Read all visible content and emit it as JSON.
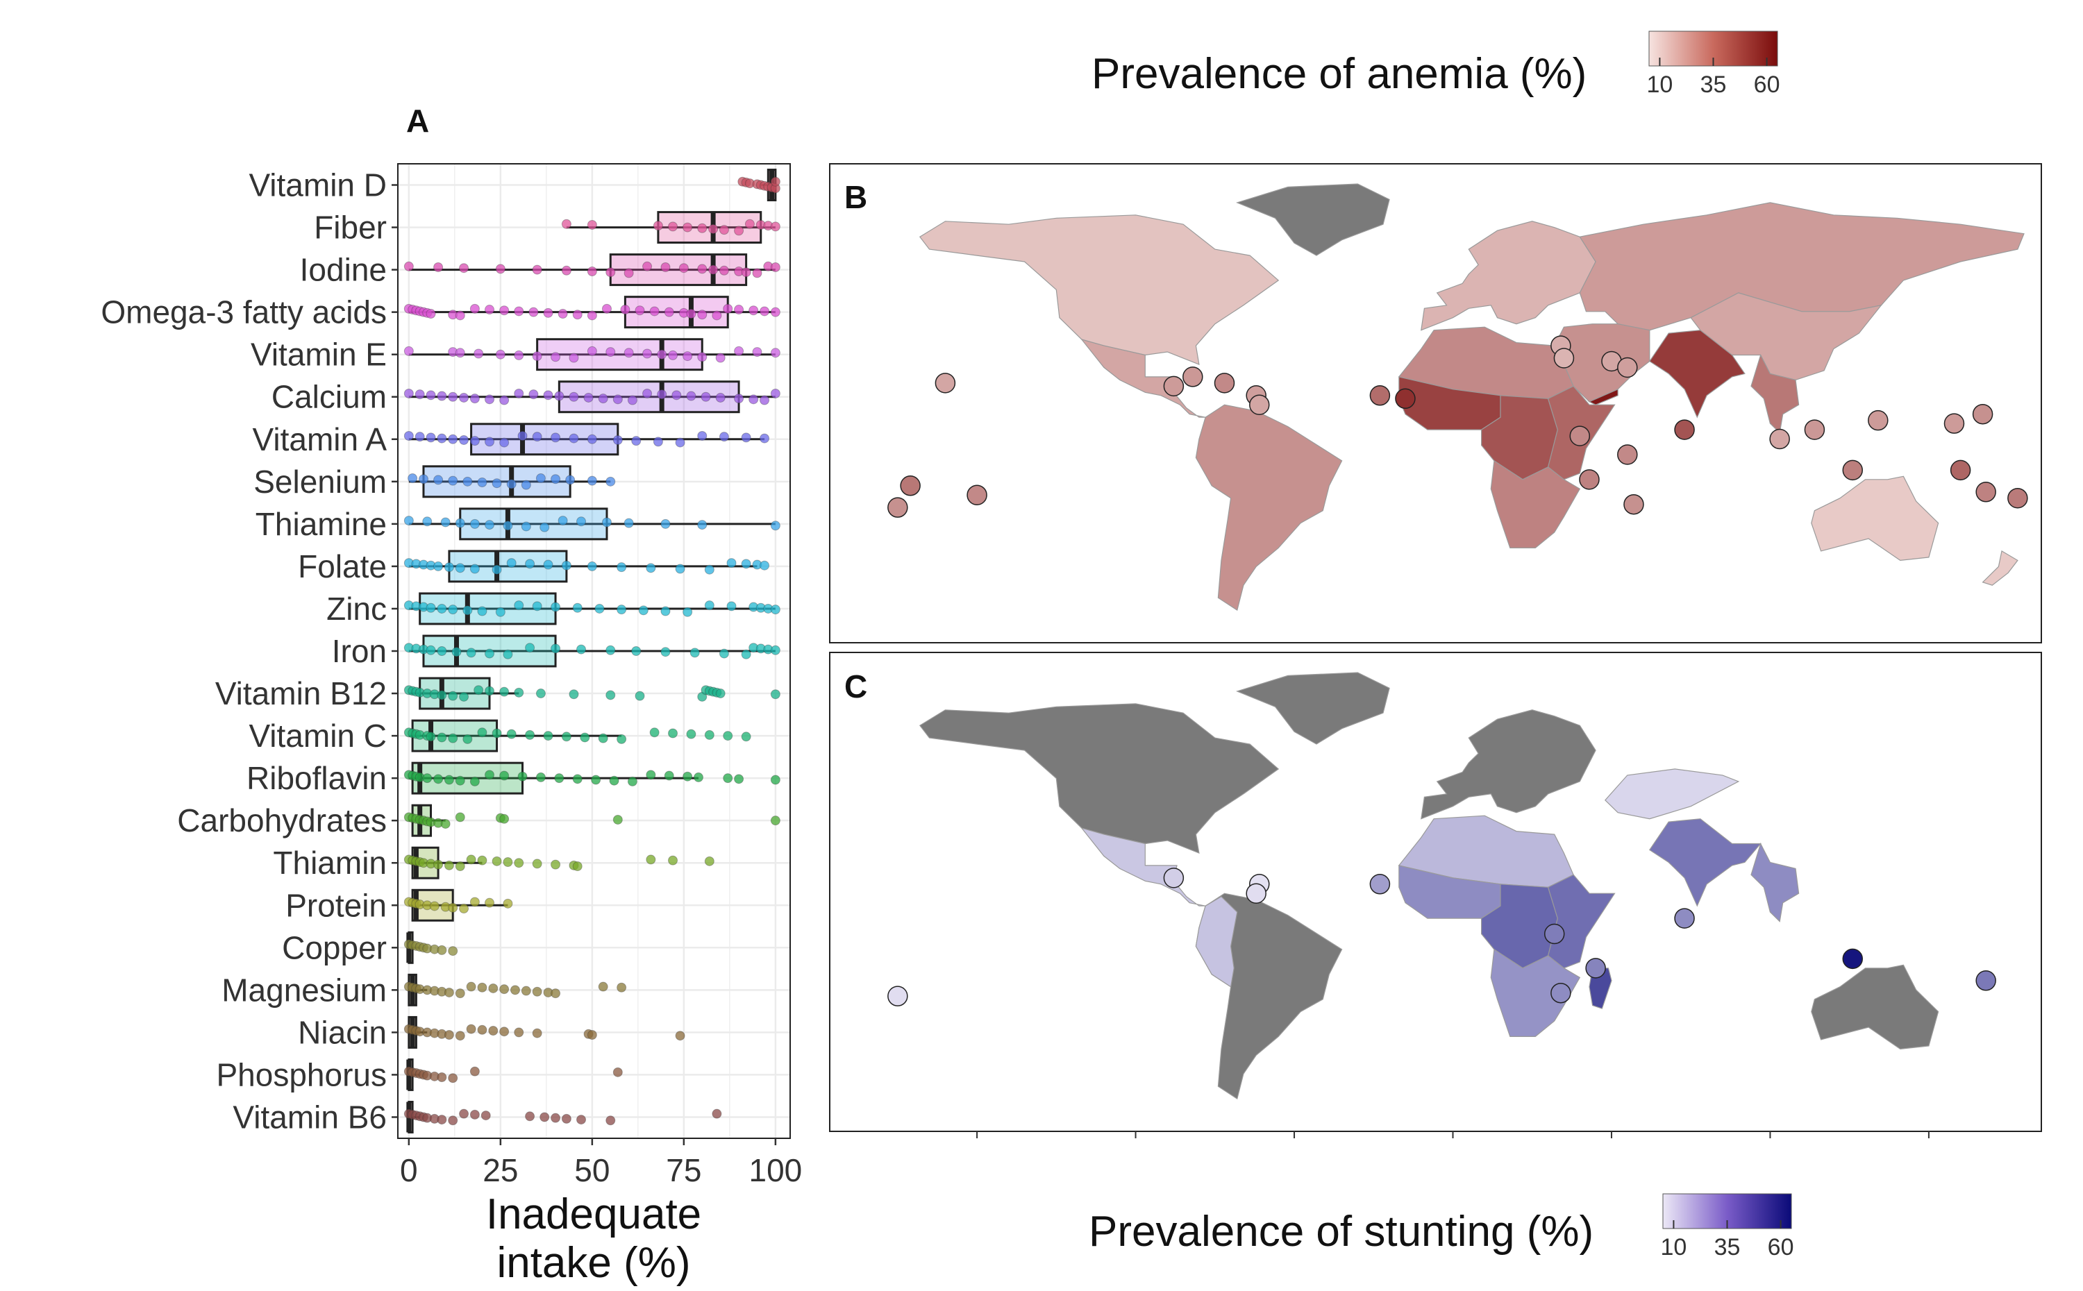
{
  "panels": {
    "a": "A",
    "b": "B",
    "c": "C"
  },
  "colors": {
    "panel_grid": "#ebebeb",
    "box_outline": "#222222",
    "ocean": "#ffffff",
    "no_data_land": "#7a7a7a",
    "anemia_low": "#f6e3e0",
    "anemia_high": "#7a0c0c",
    "stunting_low": "#ece8f6",
    "stunting_high": "#0a0a78"
  },
  "chart_data": [
    {
      "type": "box",
      "panel": "A",
      "xlabel_line1": "Inadequate",
      "xlabel_line2": "intake (%)",
      "xlim": [
        -3,
        104
      ],
      "xticks": [
        0,
        25,
        50,
        75,
        100
      ],
      "grid": true,
      "orientation": "horizontal",
      "series": [
        {
          "name": "Vitamin D",
          "color": "#c44e5e",
          "q1": 98,
          "median": 99,
          "q3": 100,
          "wlo": 96,
          "whi": 100,
          "points": [
            91,
            92,
            93,
            95,
            96,
            97,
            98,
            99,
            100,
            100
          ]
        },
        {
          "name": "Fiber",
          "color": "#e0559a",
          "q1": 68,
          "median": 83,
          "q3": 96,
          "wlo": 43,
          "whi": 100,
          "points": [
            43,
            50,
            68,
            72,
            76,
            80,
            83,
            86,
            90,
            93,
            96,
            98,
            100
          ]
        },
        {
          "name": "Iodine",
          "color": "#d94bb0",
          "q1": 55,
          "median": 83,
          "q3": 92,
          "wlo": 0,
          "whi": 100,
          "points": [
            0,
            8,
            15,
            25,
            35,
            43,
            50,
            55,
            60,
            65,
            70,
            75,
            80,
            83,
            86,
            90,
            92,
            95,
            98,
            100
          ]
        },
        {
          "name": "Omega-3 fatty acids",
          "color": "#d84fd0",
          "q1": 59,
          "median": 77,
          "q3": 87,
          "wlo": 0,
          "whi": 100,
          "points": [
            0,
            1,
            2,
            3,
            4,
            5,
            6,
            12,
            14,
            18,
            22,
            26,
            30,
            34,
            38,
            42,
            46,
            50,
            54,
            59,
            63,
            67,
            71,
            75,
            77,
            80,
            84,
            87,
            90,
            94,
            97,
            100
          ]
        },
        {
          "name": "Vitamin E",
          "color": "#c95ee0",
          "q1": 35,
          "median": 69,
          "q3": 80,
          "wlo": 0,
          "whi": 100,
          "points": [
            0,
            12,
            14,
            19,
            25,
            30,
            35,
            40,
            45,
            50,
            55,
            60,
            65,
            69,
            72,
            76,
            80,
            85,
            90,
            95,
            100
          ]
        },
        {
          "name": "Calcium",
          "color": "#9a5ae0",
          "q1": 41,
          "median": 69,
          "q3": 90,
          "wlo": 0,
          "whi": 100,
          "points": [
            0,
            3,
            6,
            9,
            12,
            15,
            18,
            22,
            26,
            30,
            34,
            38,
            41,
            45,
            49,
            53,
            57,
            61,
            65,
            69,
            73,
            77,
            81,
            85,
            90,
            94,
            97,
            100
          ]
        },
        {
          "name": "Vitamin A",
          "color": "#6a6ae8",
          "q1": 17,
          "median": 31,
          "q3": 57,
          "wlo": 0,
          "whi": 97,
          "points": [
            0,
            3,
            6,
            9,
            12,
            15,
            18,
            22,
            26,
            31,
            35,
            40,
            45,
            50,
            57,
            62,
            68,
            74,
            80,
            86,
            92,
            97
          ]
        },
        {
          "name": "Selenium",
          "color": "#4a8ae8",
          "q1": 4,
          "median": 28,
          "q3": 44,
          "wlo": 0,
          "whi": 55,
          "points": [
            1,
            4,
            8,
            12,
            16,
            20,
            24,
            28,
            32,
            36,
            40,
            44,
            50,
            55
          ]
        },
        {
          "name": "Thiamine",
          "color": "#3aa4e8",
          "q1": 14,
          "median": 27,
          "q3": 54,
          "wlo": 0,
          "whi": 100,
          "points": [
            0,
            5,
            10,
            14,
            18,
            22,
            27,
            32,
            37,
            42,
            47,
            54,
            60,
            70,
            80,
            100
          ]
        },
        {
          "name": "Folate",
          "color": "#2ab0e0",
          "q1": 11,
          "median": 24,
          "q3": 43,
          "wlo": 0,
          "whi": 95,
          "points": [
            0,
            2,
            4,
            6,
            8,
            11,
            14,
            18,
            24,
            28,
            33,
            38,
            43,
            50,
            58,
            66,
            74,
            82,
            88,
            92,
            95,
            97
          ]
        },
        {
          "name": "Zinc",
          "color": "#22b8d0",
          "q1": 3,
          "median": 16,
          "q3": 40,
          "wlo": 0,
          "whi": 100,
          "points": [
            0,
            2,
            4,
            6,
            9,
            12,
            16,
            20,
            25,
            30,
            35,
            40,
            46,
            52,
            58,
            64,
            70,
            76,
            82,
            88,
            94,
            96,
            98,
            100
          ]
        },
        {
          "name": "Iron",
          "color": "#1abab4",
          "q1": 4,
          "median": 13,
          "q3": 40,
          "wlo": 0,
          "whi": 100,
          "points": [
            0,
            2,
            4,
            6,
            9,
            13,
            17,
            22,
            27,
            33,
            40,
            47,
            55,
            62,
            70,
            78,
            86,
            92,
            94,
            96,
            98,
            100
          ]
        },
        {
          "name": "Vitamin B12",
          "color": "#18b08a",
          "q1": 3,
          "median": 9,
          "q3": 22,
          "wlo": 0,
          "whi": 30,
          "points": [
            0,
            1,
            2,
            3,
            5,
            7,
            9,
            12,
            15,
            19,
            22,
            26,
            30,
            36,
            45,
            55,
            63,
            80,
            81,
            82,
            83,
            84,
            85,
            100
          ]
        },
        {
          "name": "Vitamin C",
          "color": "#1ab070",
          "q1": 1,
          "median": 6,
          "q3": 24,
          "wlo": 0,
          "whi": 58,
          "points": [
            0,
            1,
            2,
            3,
            5,
            6,
            9,
            12,
            16,
            20,
            24,
            28,
            33,
            38,
            43,
            48,
            53,
            58,
            67,
            72,
            77,
            82,
            87,
            92
          ]
        },
        {
          "name": "Riboflavin",
          "color": "#22a848",
          "q1": 1,
          "median": 3,
          "q3": 31,
          "wlo": 0,
          "whi": 79,
          "points": [
            0,
            1,
            2,
            3,
            5,
            8,
            11,
            14,
            18,
            22,
            26,
            31,
            36,
            41,
            46,
            51,
            56,
            61,
            66,
            71,
            76,
            79,
            87,
            90,
            100
          ]
        },
        {
          "name": "Carbohydrates",
          "color": "#4aa830",
          "q1": 1,
          "median": 3,
          "q3": 6,
          "wlo": 0,
          "whi": 10,
          "points": [
            0,
            1,
            2,
            3,
            4,
            5,
            6,
            8,
            10,
            14,
            25,
            26,
            57,
            100
          ]
        },
        {
          "name": "Thiamin",
          "color": "#78a828",
          "q1": 1,
          "median": 2,
          "q3": 8,
          "wlo": 0,
          "whi": 20,
          "points": [
            0,
            1,
            2,
            3,
            4,
            6,
            8,
            11,
            14,
            17,
            20,
            24,
            27,
            30,
            35,
            40,
            45,
            46,
            66,
            72,
            82
          ]
        },
        {
          "name": "Protein",
          "color": "#a6aa30",
          "q1": 1,
          "median": 2,
          "q3": 12,
          "wlo": 0,
          "whi": 27,
          "points": [
            0,
            1,
            2,
            3,
            5,
            7,
            10,
            12,
            15,
            18,
            22,
            27
          ]
        },
        {
          "name": "Copper",
          "color": "#8a8a3a",
          "q1": 0,
          "median": 0,
          "q3": 1,
          "wlo": 0,
          "whi": 3,
          "points": [
            0,
            1,
            2,
            3,
            4,
            5,
            7,
            9,
            12
          ]
        },
        {
          "name": "Magnesium",
          "color": "#8a7a3a",
          "q1": 0,
          "median": 1,
          "q3": 2,
          "wlo": 0,
          "whi": 5,
          "points": [
            0,
            1,
            2,
            3,
            5,
            7,
            9,
            11,
            14,
            17,
            20,
            23,
            26,
            29,
            32,
            35,
            38,
            40,
            53,
            58
          ]
        },
        {
          "name": "Niacin",
          "color": "#8a6a3a",
          "q1": 0,
          "median": 1,
          "q3": 2,
          "wlo": 0,
          "whi": 5,
          "points": [
            0,
            1,
            2,
            3,
            5,
            7,
            9,
            11,
            14,
            17,
            20,
            23,
            26,
            30,
            35,
            49,
            50,
            74
          ]
        },
        {
          "name": "Phosphorus",
          "color": "#8a5a40",
          "q1": 0,
          "median": 0,
          "q3": 1,
          "wlo": 0,
          "whi": 3,
          "points": [
            0,
            1,
            2,
            3,
            4,
            5,
            7,
            9,
            12,
            18,
            57
          ]
        },
        {
          "name": "Vitamin B6",
          "color": "#8a4a48",
          "q1": 0,
          "median": 0,
          "q3": 1,
          "wlo": 0,
          "whi": 3,
          "points": [
            0,
            1,
            2,
            3,
            4,
            5,
            7,
            9,
            12,
            15,
            18,
            21,
            33,
            37,
            40,
            43,
            47,
            55,
            84
          ]
        }
      ]
    },
    {
      "type": "choropleth",
      "panel": "B",
      "legend_title": "Prevalence of anemia (%)",
      "legend_ticks": [
        "10",
        "35",
        "60"
      ],
      "legend_range": [
        5,
        65
      ],
      "regions": [
        {
          "name": "North America",
          "value": 14
        },
        {
          "name": "Greenland",
          "value": null
        },
        {
          "name": "Central America",
          "value": 22
        },
        {
          "name": "South America",
          "value": 28
        },
        {
          "name": "Europe",
          "value": 18
        },
        {
          "name": "Russia / Central Asia",
          "value": 25
        },
        {
          "name": "North Africa",
          "value": 30
        },
        {
          "name": "West Africa",
          "value": 50
        },
        {
          "name": "Central Africa",
          "value": 45
        },
        {
          "name": "East Africa",
          "value": 40
        },
        {
          "name": "Southern Africa",
          "value": 32
        },
        {
          "name": "Middle East",
          "value": 28
        },
        {
          "name": "Yemen",
          "value": 62
        },
        {
          "name": "India",
          "value": 52
        },
        {
          "name": "China",
          "value": 22
        },
        {
          "name": "Southeast Asia",
          "value": 35
        },
        {
          "name": "Australia",
          "value": 12
        },
        {
          "name": "New Zealand",
          "value": 12
        }
      ],
      "points": [
        {
          "lon": -150,
          "lat": -17,
          "value": 30
        },
        {
          "lon": -160,
          "lat": 19,
          "value": 22
        },
        {
          "lon": -171,
          "lat": -14,
          "value": 35
        },
        {
          "lon": -175,
          "lat": -21,
          "value": 28
        },
        {
          "lon": -88,
          "lat": 18,
          "value": 25
        },
        {
          "lon": -82,
          "lat": 21,
          "value": 26
        },
        {
          "lon": -72,
          "lat": 19,
          "value": 30
        },
        {
          "lon": -62,
          "lat": 15,
          "value": 24
        },
        {
          "lon": -61,
          "lat": 12,
          "value": 22
        },
        {
          "lon": -23,
          "lat": 15,
          "value": 38
        },
        {
          "lon": -15,
          "lat": 14,
          "value": 55
        },
        {
          "lon": 34,
          "lat": 31,
          "value": 20
        },
        {
          "lon": 35,
          "lat": 27,
          "value": 18
        },
        {
          "lon": 50,
          "lat": 26,
          "value": 22
        },
        {
          "lon": 55,
          "lat": 24,
          "value": 24
        },
        {
          "lon": 40,
          "lat": 2,
          "value": 30
        },
        {
          "lon": 43,
          "lat": -12,
          "value": 32
        },
        {
          "lon": 55,
          "lat": -4,
          "value": 30
        },
        {
          "lon": 57,
          "lat": -20,
          "value": 28
        },
        {
          "lon": 73,
          "lat": 4,
          "value": 45
        },
        {
          "lon": 103,
          "lat": 1,
          "value": 22
        },
        {
          "lon": 114,
          "lat": 4,
          "value": 26
        },
        {
          "lon": 126,
          "lat": -9,
          "value": 33
        },
        {
          "lon": 134,
          "lat": 7,
          "value": 25
        },
        {
          "lon": 158,
          "lat": 6,
          "value": 25
        },
        {
          "lon": 167,
          "lat": 9,
          "value": 28
        },
        {
          "lon": 160,
          "lat": -9,
          "value": 40
        },
        {
          "lon": 168,
          "lat": -16,
          "value": 32
        },
        {
          "lon": 178,
          "lat": -18,
          "value": 34
        }
      ]
    },
    {
      "type": "choropleth",
      "panel": "C",
      "legend_title": "Prevalence of stunting (%)",
      "legend_ticks": [
        "10",
        "35",
        "60"
      ],
      "legend_range": [
        5,
        65
      ],
      "regions": [
        {
          "name": "North America",
          "value": null
        },
        {
          "name": "Greenland",
          "value": null
        },
        {
          "name": "Mexico / Central America",
          "value": 14
        },
        {
          "name": "South America",
          "value": null
        },
        {
          "name": "Andean region",
          "value": 15
        },
        {
          "name": "Europe",
          "value": null
        },
        {
          "name": "Central Asia",
          "value": 10
        },
        {
          "name": "North Africa",
          "value": 18
        },
        {
          "name": "West Africa",
          "value": 30
        },
        {
          "name": "Central Africa",
          "value": 40
        },
        {
          "name": "East Africa",
          "value": 38
        },
        {
          "name": "Southern Africa",
          "value": 28
        },
        {
          "name": "Madagascar",
          "value": 48
        },
        {
          "name": "South Asia",
          "value": 36
        },
        {
          "name": "Southeast Asia",
          "value": 30
        },
        {
          "name": "Australia",
          "value": null
        }
      ],
      "points": [
        {
          "lon": -175,
          "lat": -21,
          "value": 8
        },
        {
          "lon": -88,
          "lat": 17,
          "value": 12
        },
        {
          "lon": -61,
          "lat": 15,
          "value": 7
        },
        {
          "lon": -62,
          "lat": 12,
          "value": 8
        },
        {
          "lon": -23,
          "lat": 15,
          "value": 25
        },
        {
          "lon": 32,
          "lat": -1,
          "value": 34
        },
        {
          "lon": 34,
          "lat": -20,
          "value": 30
        },
        {
          "lon": 45,
          "lat": -12,
          "value": 32
        },
        {
          "lon": 73,
          "lat": 4,
          "value": 30
        },
        {
          "lon": 126,
          "lat": -9,
          "value": 62
        },
        {
          "lon": 168,
          "lat": -16,
          "value": 35
        }
      ]
    }
  ]
}
